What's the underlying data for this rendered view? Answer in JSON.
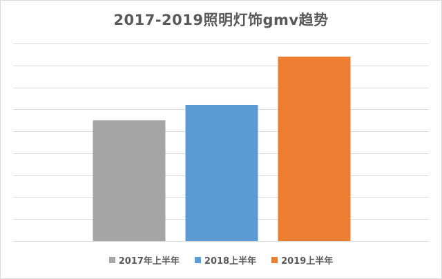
{
  "chart_data": {
    "type": "bar",
    "title": "2017-2019照明灯饰gmv趋势",
    "xlabel": "",
    "ylabel": "",
    "ylim": [
      0,
      9
    ],
    "grid": true,
    "grid_step": 1,
    "y_tick_labels_visible": false,
    "legend_position": "bottom",
    "series": [
      {
        "name": "2017年上半年",
        "value": 5.5,
        "color": "#a5a5a5"
      },
      {
        "name": "2018上半年",
        "value": 6.2,
        "color": "#5b9bd5"
      },
      {
        "name": "2019上半年",
        "value": 8.4,
        "color": "#ed7d31"
      }
    ]
  }
}
